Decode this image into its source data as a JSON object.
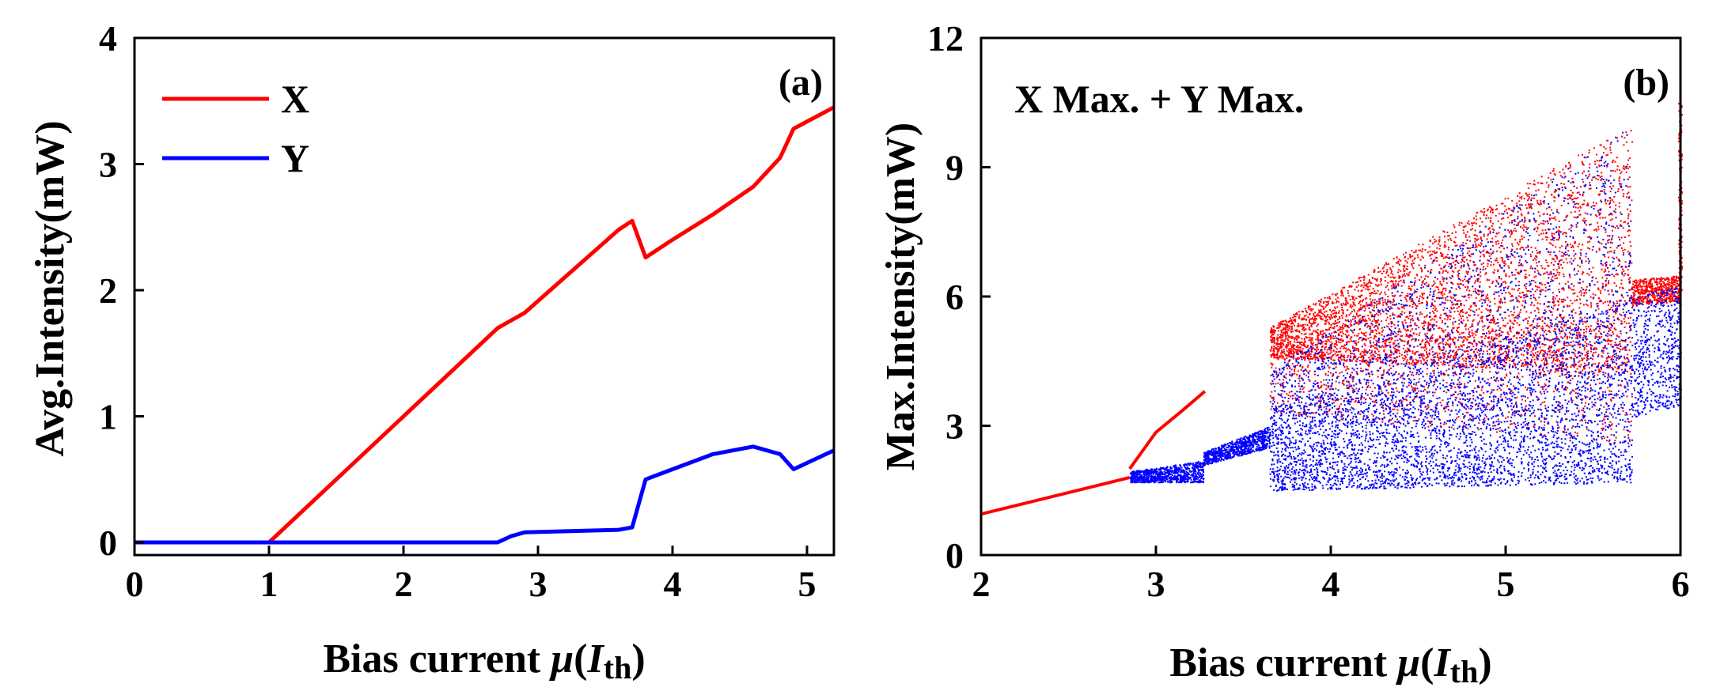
{
  "chart_data": [
    {
      "type": "line",
      "panel_label": "(a)",
      "xlabel": {
        "prefix": "Bias current ",
        "mu": "μ",
        "open": "(",
        "I": "I",
        "sub": "th",
        "close": ")"
      },
      "ylabel": "Avg.Intensity(mW)",
      "xlim": [
        0,
        5.2
      ],
      "ylim": [
        -0.1,
        4
      ],
      "xticks": [
        0,
        1,
        2,
        3,
        4,
        5
      ],
      "yticks": [
        0,
        1,
        2,
        3,
        4
      ],
      "xtick_labels": [
        "0",
        "1",
        "2",
        "3",
        "4",
        "5"
      ],
      "ytick_labels": [
        "0",
        "1",
        "2",
        "3",
        "4"
      ],
      "legend": {
        "position": "top-left",
        "entries": [
          "X",
          "Y"
        ]
      },
      "series": [
        {
          "name": "X",
          "color": "#ff0000",
          "x": [
            0,
            1.0,
            1.05,
            2.7,
            2.9,
            3.6,
            3.7,
            3.8,
            4.0,
            4.3,
            4.6,
            4.8,
            4.9,
            5.2
          ],
          "y": [
            0,
            0,
            0.05,
            1.7,
            1.82,
            2.48,
            2.55,
            2.26,
            2.4,
            2.6,
            2.82,
            3.05,
            3.28,
            3.45
          ]
        },
        {
          "name": "Y",
          "color": "#0000ff",
          "x": [
            0,
            2.7,
            2.8,
            2.9,
            3.6,
            3.7,
            3.8,
            4.0,
            4.3,
            4.6,
            4.8,
            4.9,
            5.2
          ],
          "y": [
            0,
            0,
            0.05,
            0.08,
            0.1,
            0.12,
            0.5,
            0.58,
            0.7,
            0.76,
            0.7,
            0.58,
            0.73
          ]
        }
      ]
    },
    {
      "type": "scatter",
      "panel_label": "(b)",
      "annotation": "X Max. + Y Max.",
      "xlabel": {
        "prefix": "Bias current ",
        "mu": "μ",
        "open": "(",
        "I": "I",
        "sub": "th",
        "close": ")"
      },
      "ylabel": "Max.Intensity(mW)",
      "xlim": [
        2,
        6
      ],
      "ylim": [
        0,
        12
      ],
      "xticks": [
        2,
        3,
        4,
        5,
        6
      ],
      "yticks": [
        0,
        3,
        6,
        9,
        12
      ],
      "xtick_labels": [
        "2",
        "3",
        "4",
        "5",
        "6"
      ],
      "ytick_labels": [
        "0",
        "3",
        "6",
        "9",
        "12"
      ],
      "series": [
        {
          "name": "X Max.",
          "color": "#ff0000",
          "regimes": [
            {
              "kind": "line",
              "x": [
                2.0,
                2.85
              ],
              "y": [
                0.95,
                1.8
              ]
            },
            {
              "kind": "curve",
              "x": [
                2.85,
                3.0,
                3.15,
                3.28
              ],
              "y": [
                2.0,
                2.85,
                3.35,
                3.8
              ]
            },
            {
              "kind": "band",
              "x": [
                3.65,
                5.72
              ],
              "lo": [
                4.6,
                4.2
              ],
              "hi": [
                5.3,
                10.0
              ]
            },
            {
              "kind": "sparse",
              "x": [
                3.65,
                5.72
              ],
              "lo": [
                3.3,
                2.6
              ],
              "hi": [
                4.6,
                5.5
              ]
            },
            {
              "kind": "band",
              "x": [
                5.72,
                6.0
              ],
              "lo": [
                5.8,
                5.9
              ],
              "hi": [
                6.4,
                6.5
              ]
            },
            {
              "kind": "spike",
              "x": [
                6.0,
                6.0
              ],
              "lo": [
                6.0,
                6.0
              ],
              "hi": [
                10.5,
                10.5
              ]
            }
          ]
        },
        {
          "name": "Y Max.",
          "color": "#0000ff",
          "regimes": [
            {
              "kind": "band",
              "x": [
                2.85,
                3.27
              ],
              "lo": [
                1.7,
                1.7
              ],
              "hi": [
                1.95,
                2.2
              ]
            },
            {
              "kind": "band",
              "x": [
                3.27,
                3.65
              ],
              "lo": [
                2.1,
                2.5
              ],
              "hi": [
                2.4,
                3.0
              ]
            },
            {
              "kind": "band",
              "x": [
                3.65,
                5.72
              ],
              "lo": [
                1.5,
                1.7
              ],
              "hi": [
                3.5,
                6.0
              ]
            },
            {
              "kind": "sparse",
              "x": [
                3.65,
                5.72
              ],
              "lo": [
                3.5,
                6.0
              ],
              "hi": [
                4.3,
                10.0
              ]
            },
            {
              "kind": "band",
              "x": [
                5.72,
                6.0
              ],
              "lo": [
                3.2,
                3.5
              ],
              "hi": [
                6.0,
                6.3
              ]
            }
          ]
        }
      ]
    }
  ]
}
